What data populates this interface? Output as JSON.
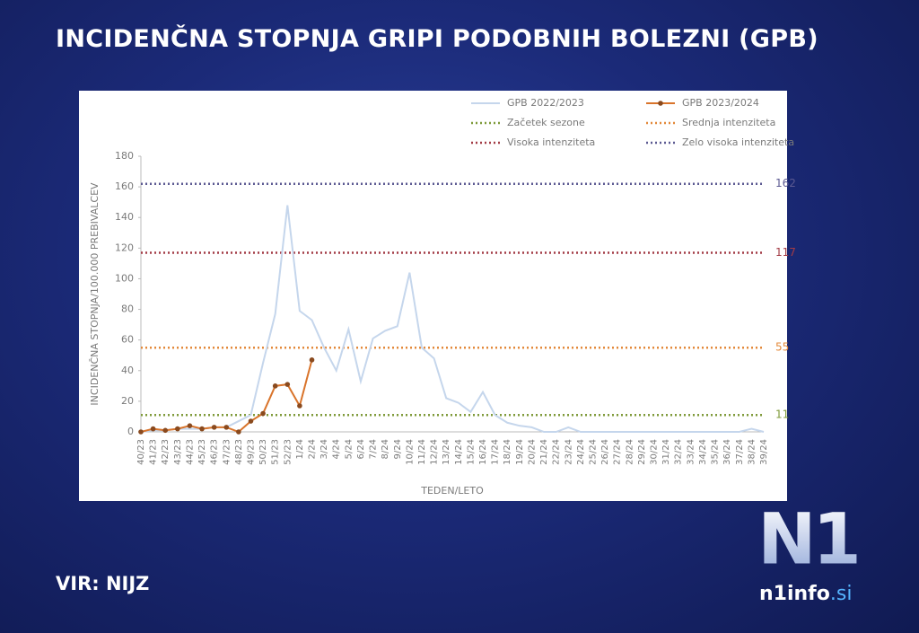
{
  "chart_data": {
    "type": "line",
    "title": "INCIDENČNA STOPNJA GRIPI PODOBNIH BOLEZNI (GPB)",
    "ylabel": "INCIDENČNA STOPNJA/100.000 PREBIVALCEV",
    "xlabel": "TEDEN/LETO",
    "categories": [
      "40/23",
      "41/23",
      "42/23",
      "43/23",
      "44/23",
      "45/23",
      "46/23",
      "47/23",
      "48/23",
      "49/23",
      "50/23",
      "51/23",
      "52/23",
      "1/24",
      "2/24",
      "3/24",
      "4/24",
      "5/24",
      "6/24",
      "7/24",
      "8/24",
      "9/24",
      "10/24",
      "11/24",
      "12/24",
      "13/24",
      "14/24",
      "15/24",
      "16/24",
      "17/24",
      "18/24",
      "19/24",
      "20/24",
      "21/24",
      "22/24",
      "23/24",
      "24/24",
      "25/24",
      "26/24",
      "27/24",
      "28/24",
      "29/24",
      "30/24",
      "31/24",
      "32/24",
      "33/24",
      "34/24",
      "35/24",
      "36/24",
      "37/24",
      "38/24",
      "39/24"
    ],
    "series": [
      {
        "name": "GPB 2022/2023",
        "color": "#c5d6ec",
        "values": [
          0,
          1,
          1,
          2,
          2,
          2,
          3,
          3,
          7,
          11,
          45,
          77,
          148,
          79,
          73,
          55,
          40,
          67,
          33,
          61,
          66,
          69,
          104,
          55,
          48,
          22,
          19,
          13,
          26,
          11,
          6,
          4,
          3,
          0,
          0,
          3,
          0,
          0,
          0,
          0,
          0,
          0,
          0,
          0,
          0,
          0,
          0,
          0,
          0,
          0,
          2,
          0
        ]
      },
      {
        "name": "GPB 2023/2024",
        "color": "#d9742b",
        "values": [
          0,
          2,
          1,
          2,
          4,
          2,
          3,
          3,
          0,
          7,
          12,
          30,
          31,
          17,
          47,
          null,
          null,
          null,
          null,
          null,
          null,
          null,
          null,
          null,
          null,
          null,
          null,
          null,
          null,
          null,
          null,
          null,
          null,
          null,
          null,
          null,
          null,
          null,
          null,
          null,
          null,
          null,
          null,
          null,
          null,
          null,
          null,
          null,
          null,
          null,
          null,
          null
        ]
      }
    ],
    "thresholds": [
      {
        "name": "Začetek sezone",
        "value": 11,
        "color": "#7f9a3a"
      },
      {
        "name": "Srednja intenziteta",
        "value": 55,
        "color": "#e3893a"
      },
      {
        "name": "Visoka intenziteta",
        "value": 117,
        "color": "#a33c46"
      },
      {
        "name": "Zelo visoka intenziteta",
        "value": 162,
        "color": "#5c5a92"
      }
    ],
    "ylim": [
      0,
      180
    ],
    "yticks": [
      0,
      20,
      40,
      60,
      80,
      100,
      120,
      140,
      160,
      180
    ]
  },
  "source": "VIR: NIJZ",
  "logo": {
    "mark": "N1",
    "site": "n1info",
    "domain": ".si"
  }
}
